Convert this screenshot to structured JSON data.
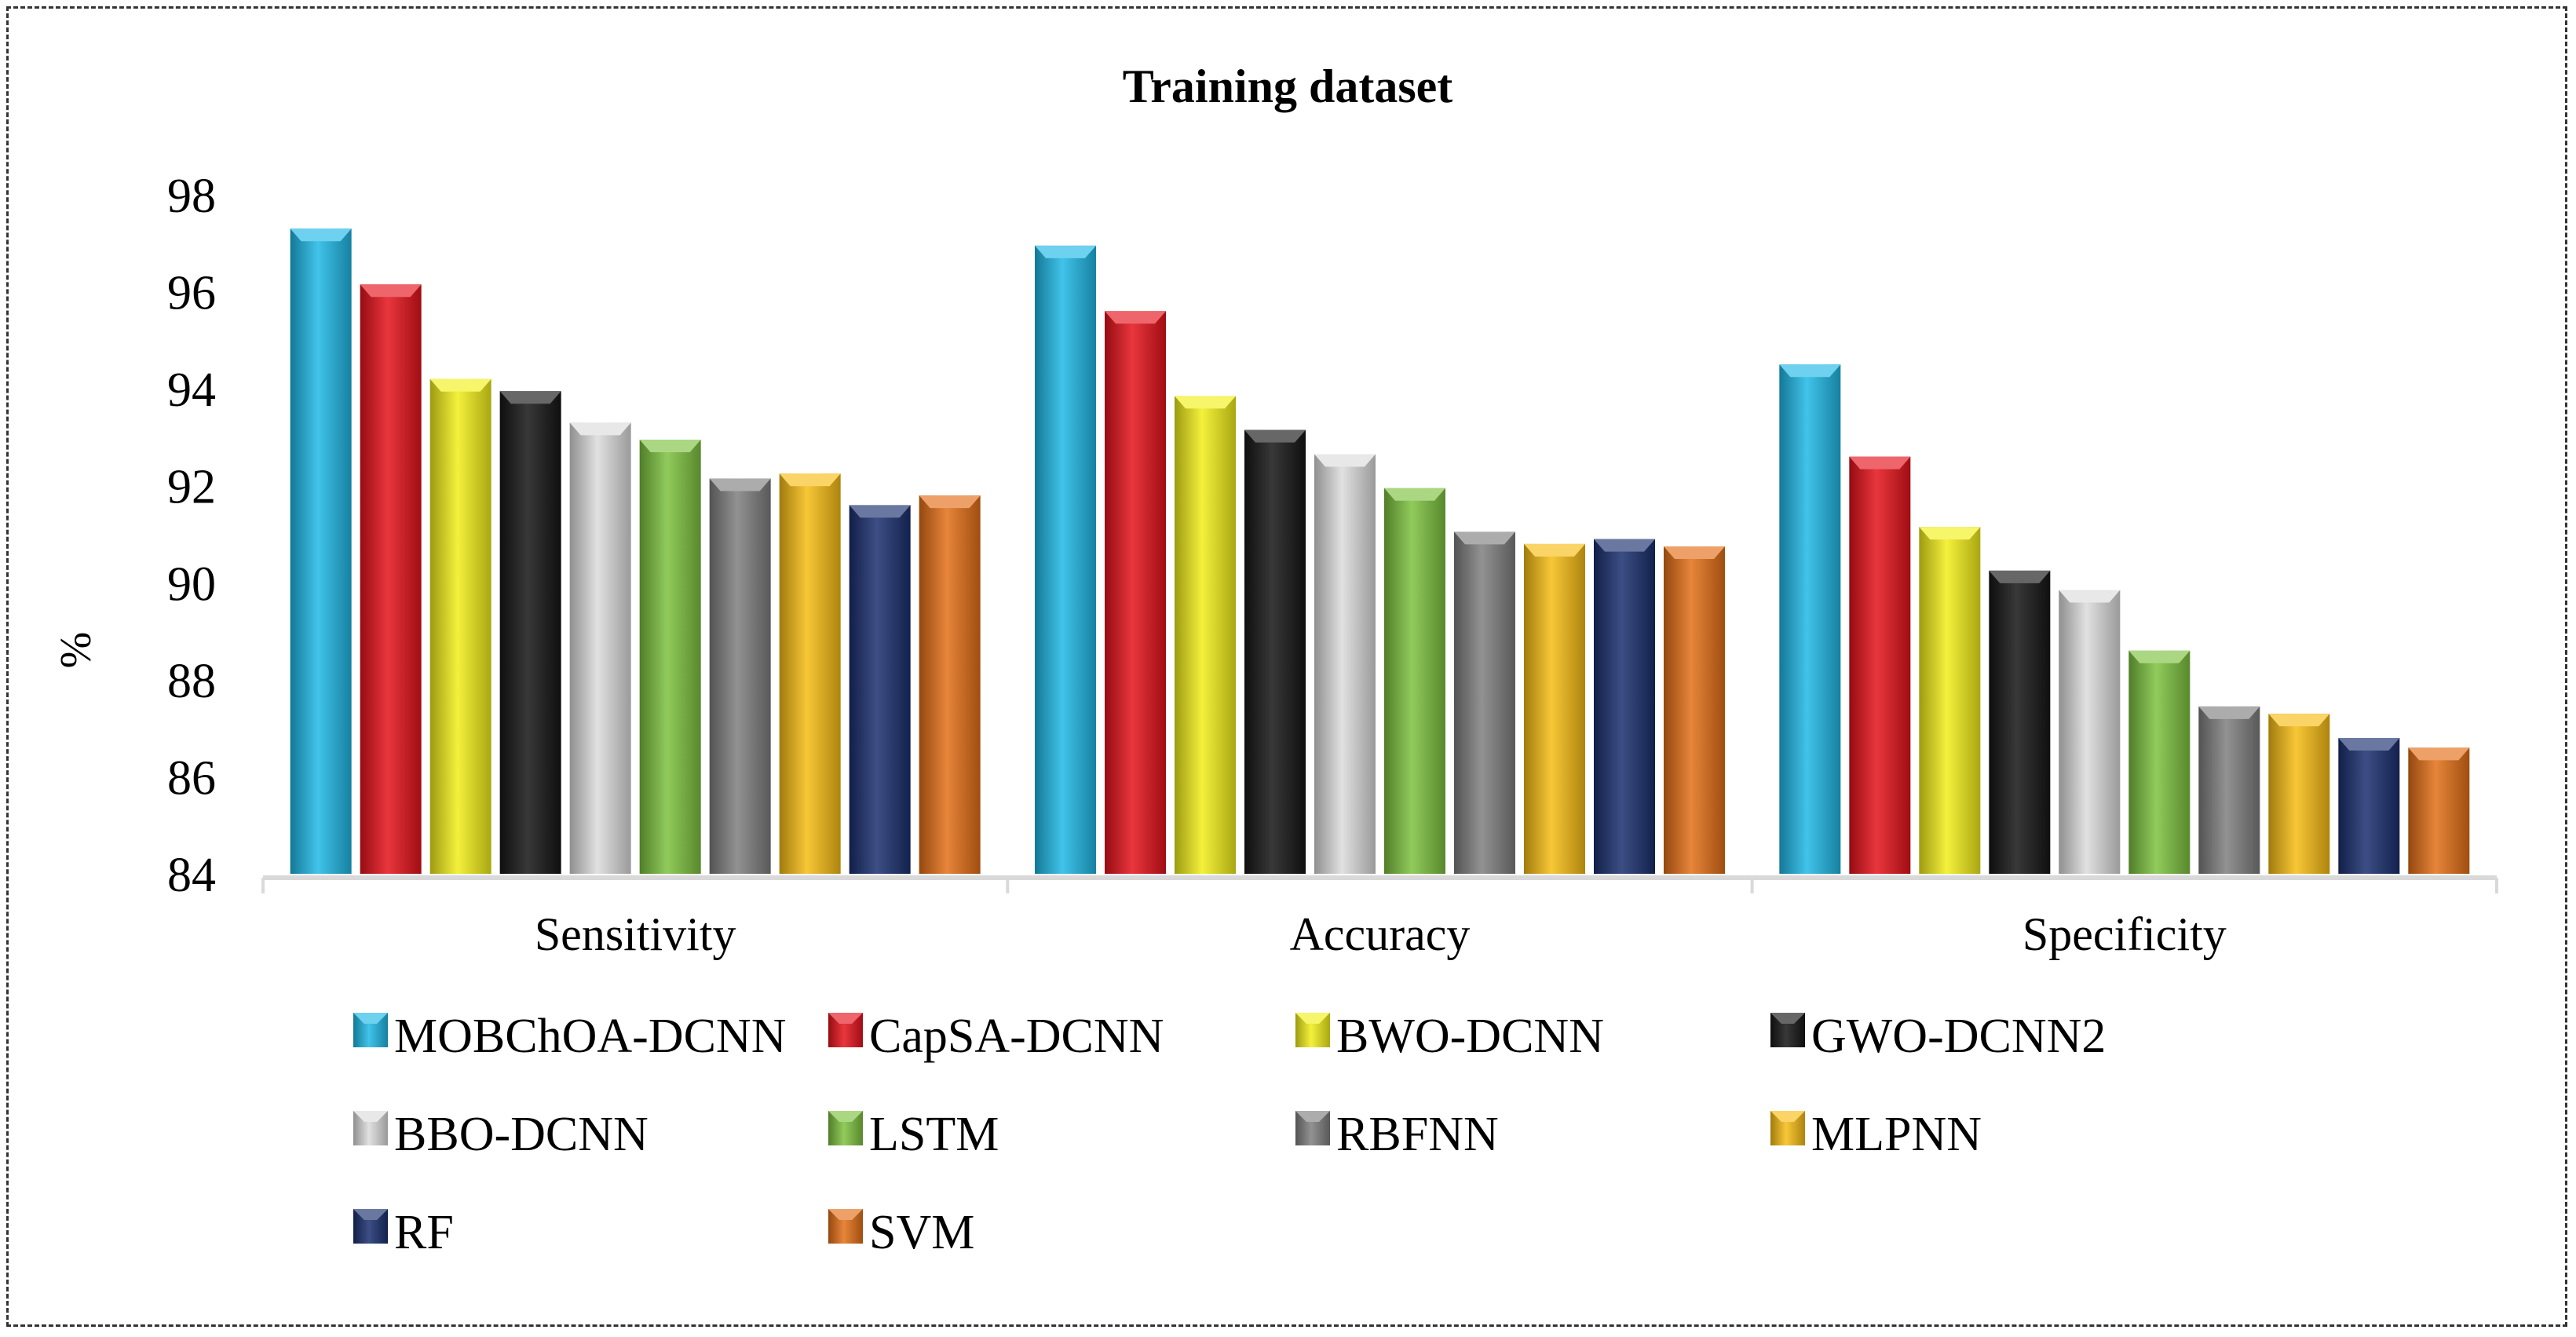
{
  "chart_data": {
    "type": "bar",
    "title": "Training dataset",
    "xlabel": "",
    "ylabel": "%",
    "ylim": [
      84,
      98
    ],
    "yticks": [
      "84",
      "86",
      "88",
      "90",
      "92",
      "94",
      "96",
      "98"
    ],
    "grid": false,
    "legend_position": "bottom",
    "categories": [
      "Sensitivity",
      "Accuracy",
      "Specificity"
    ],
    "series": [
      {
        "name": "MOBChOA-DCNN",
        "color": "#1fb8e6",
        "values": [
          97.3,
          96.95,
          94.5
        ]
      },
      {
        "name": "CapSA-DCNN",
        "color": "#e5131b",
        "values": [
          96.15,
          95.6,
          92.6
        ]
      },
      {
        "name": "BWO-DCNN",
        "color": "#f2ef1a",
        "values": [
          94.2,
          93.85,
          91.15
        ]
      },
      {
        "name": "GWO-DCNN2",
        "color": "#151515",
        "values": [
          93.95,
          93.15,
          90.25
        ]
      },
      {
        "name": "BBO-DCNN",
        "color": "#dcdcdc",
        "values": [
          93.3,
          92.65,
          89.85
        ]
      },
      {
        "name": "LSTM",
        "color": "#7dc23f",
        "values": [
          92.95,
          91.95,
          88.6
        ]
      },
      {
        "name": "RBFNN",
        "color": "#7f7f7f",
        "values": [
          92.15,
          91.05,
          87.45
        ]
      },
      {
        "name": "MLPNN",
        "color": "#f7bd14",
        "values": [
          92.25,
          90.8,
          87.3
        ]
      },
      {
        "name": "RF",
        "color": "#1a2f6e",
        "values": [
          91.6,
          90.9,
          86.8
        ]
      },
      {
        "name": "SVM",
        "color": "#e36f17",
        "values": [
          91.8,
          90.75,
          86.6
        ]
      }
    ]
  }
}
